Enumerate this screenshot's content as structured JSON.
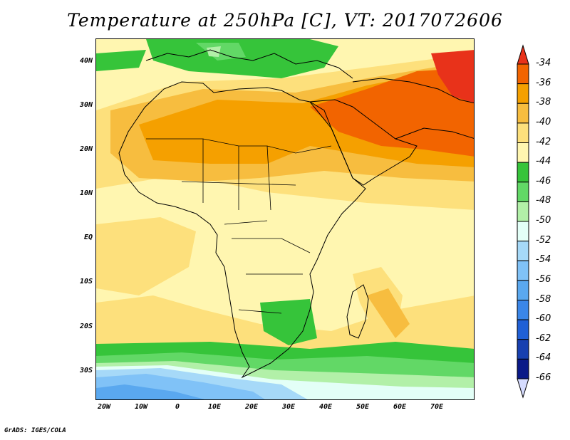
{
  "title": "Temperature at 250hPa [C], VT: 2017072606",
  "footer": "GrADS: IGES/COLA",
  "map": {
    "lat_ticks": [
      "40N",
      "30N",
      "20N",
      "10N",
      "EQ",
      "10S",
      "20S",
      "30S"
    ],
    "lon_ticks": [
      "20W",
      "10W",
      "0",
      "10E",
      "20E",
      "30E",
      "40E",
      "50E",
      "60E",
      "70E"
    ],
    "extent": {
      "lon": [
        -20,
        80
      ],
      "lat": [
        -37,
        45
      ]
    }
  },
  "colorbar": {
    "labels": [
      "-34",
      "-36",
      "-38",
      "-40",
      "-42",
      "-44",
      "-46",
      "-48",
      "-50",
      "-52",
      "-54",
      "-56",
      "-58",
      "-60",
      "-62",
      "-64",
      "-66"
    ],
    "colors": [
      "#e8321a",
      "#f26400",
      "#f5a000",
      "#f7bd3f",
      "#fde07c",
      "#fff6b0",
      "#36c43a",
      "#62d866",
      "#b2f0a8",
      "#e3fff7",
      "#a6d9f8",
      "#80c2f7",
      "#5aa8ef",
      "#3a86e8",
      "#2060d6",
      "#1840b0",
      "#0a1a88"
    ],
    "top_triangle_color": "#e8321a",
    "bottom_triangle_color": "#d6dcff"
  }
}
